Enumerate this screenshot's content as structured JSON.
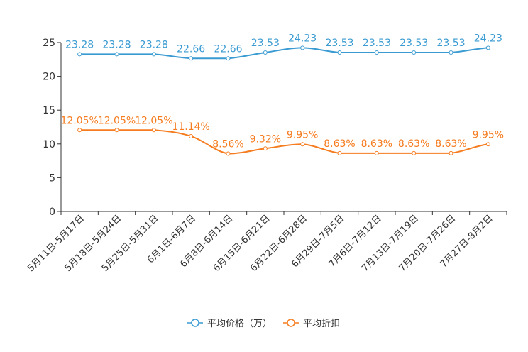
{
  "chart_data": {
    "type": "line",
    "title": "",
    "xlabel": "",
    "ylabel": "",
    "ylim": [
      0,
      25
    ],
    "yticks": [
      0,
      5,
      10,
      15,
      20,
      25
    ],
    "grid": false,
    "legend_position": "bottom-center",
    "categories": [
      "5月11日-5月17日",
      "5月18日-5月24日",
      "5月25日-5月31日",
      "6月1日-6月7日",
      "6月8日-6月14日",
      "6月15日-6月21日",
      "6月22日-6月28日",
      "6月29日-7月5日",
      "7月6日-7月12日",
      "7月13日-7月19日",
      "7月20日-7月26日",
      "7月27日-8月2日"
    ],
    "series": [
      {
        "name": "平均价格（万）",
        "color": "#3a9bd2",
        "values": [
          23.28,
          23.28,
          23.28,
          22.66,
          22.66,
          23.53,
          24.23,
          23.53,
          23.53,
          23.53,
          23.53,
          24.23
        ],
        "labels": [
          "23.28",
          "23.28",
          "23.28",
          "22.66",
          "22.66",
          "23.53",
          "24.23",
          "23.53",
          "23.53",
          "23.53",
          "23.53",
          "24.23"
        ]
      },
      {
        "name": "平均折扣",
        "color": "#f57c1f",
        "values": [
          12.05,
          12.05,
          12.05,
          11.14,
          8.56,
          9.32,
          9.95,
          8.63,
          8.63,
          8.63,
          8.63,
          9.95
        ],
        "labels": [
          "12.05%",
          "12.05%",
          "12.05%",
          "11.14%",
          "8.56%",
          "9.32%",
          "9.95%",
          "8.63%",
          "8.63%",
          "8.63%",
          "8.63%",
          "9.95%"
        ]
      }
    ]
  }
}
